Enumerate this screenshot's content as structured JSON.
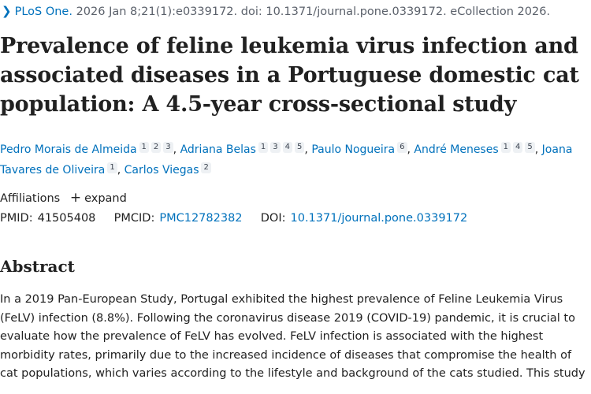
{
  "citation": {
    "journal": "PLoS One.",
    "details": "2026 Jan 8;21(1):e0339172. doi: 10.1371/journal.pone.0339172. eCollection 2026."
  },
  "title": "Prevalence of feline leukemia virus infection and associated diseases in a Portuguese domestic cat population: A 4.5-year cross-sectional study",
  "authors": [
    {
      "name": "Pedro Morais de Almeida",
      "affs": [
        "1",
        "2",
        "3"
      ]
    },
    {
      "name": "Adriana Belas",
      "affs": [
        "1",
        "3",
        "4",
        "5"
      ]
    },
    {
      "name": "Paulo Nogueira",
      "affs": [
        "6"
      ]
    },
    {
      "name": "André Meneses",
      "affs": [
        "1",
        "4",
        "5"
      ]
    },
    {
      "name": "Joana Tavares de Oliveira",
      "affs": [
        "1"
      ]
    },
    {
      "name": "Carlos Viegas",
      "affs": [
        "2"
      ]
    }
  ],
  "affiliations": {
    "label": "Affiliations",
    "toggle_icon": "+",
    "toggle_label": "expand"
  },
  "identifiers": {
    "pmid_label": "PMID:",
    "pmid": "41505408",
    "pmcid_label": "PMCID:",
    "pmcid": "PMC12782382",
    "doi_label": "DOI:",
    "doi": "10.1371/journal.pone.0339172"
  },
  "abstract": {
    "heading": "Abstract",
    "text": "In a 2019 Pan-European Study, Portugal exhibited the highest prevalence of Feline Leukemia Virus (FeLV) infection (8.8%). Following the coronavirus disease 2019 (COVID-19) pandemic, it is crucial to evaluate how the prevalence of FeLV has evolved. FeLV infection is associated with the highest morbidity rates, primarily due to the increased incidence of diseases that compromise the health of cat populations, which varies according to the lifestyle and background of the cats studied. This study"
  }
}
